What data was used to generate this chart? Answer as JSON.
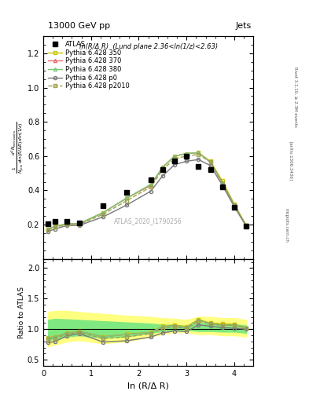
{
  "title_top": "13000 GeV pp",
  "title_right": "Jets",
  "plot_label": "ln(R/Δ R)  (Lund plane 2.36<ln(1/z)<2.63)",
  "watermark": "ATLAS_2020_I1790256",
  "rivet_label": "Rivet 3.1.10, ≥ 2.3M events",
  "arxiv_label": "[arXiv:1306.3436]",
  "mcplots_label": "mcplots.cern.ch",
  "ylabel_main": "$\\frac{1}{N_{\\mathrm{jets}}}\\frac{d^{2}N_{\\mathrm{emissions}}}{d\\ln(R/\\Delta R)\\,d\\ln(1/z)}$",
  "ylabel_ratio": "Ratio to ATLAS",
  "xlabel": "ln (R/Δ R)",
  "xlim": [
    0,
    4.4
  ],
  "ylim_main": [
    0.0,
    1.3
  ],
  "ylim_ratio": [
    0.4,
    2.15
  ],
  "yticks_main": [
    0.2,
    0.4,
    0.6,
    0.8,
    1.0,
    1.2
  ],
  "yticks_ratio": [
    0.5,
    1.0,
    1.5,
    2.0
  ],
  "x_data": [
    0.1,
    0.25,
    0.5,
    0.75,
    1.25,
    1.75,
    2.25,
    2.5,
    2.75,
    3.0,
    3.25,
    3.5,
    3.75,
    4.0,
    4.25
  ],
  "atlas_y": [
    0.205,
    0.22,
    0.22,
    0.21,
    0.31,
    0.39,
    0.46,
    0.52,
    0.57,
    0.6,
    0.54,
    0.52,
    0.42,
    0.3,
    0.19
  ],
  "p350_y": [
    0.175,
    0.19,
    0.205,
    0.205,
    0.27,
    0.355,
    0.43,
    0.535,
    0.6,
    0.615,
    0.62,
    0.57,
    0.455,
    0.32,
    0.195
  ],
  "p370_y": [
    0.175,
    0.19,
    0.205,
    0.205,
    0.27,
    0.355,
    0.43,
    0.535,
    0.6,
    0.615,
    0.62,
    0.565,
    0.445,
    0.315,
    0.195
  ],
  "p380_y": [
    0.175,
    0.19,
    0.205,
    0.205,
    0.27,
    0.355,
    0.435,
    0.535,
    0.6,
    0.615,
    0.62,
    0.565,
    0.445,
    0.315,
    0.195
  ],
  "pp0_y": [
    0.16,
    0.175,
    0.195,
    0.195,
    0.245,
    0.315,
    0.395,
    0.485,
    0.55,
    0.57,
    0.58,
    0.545,
    0.43,
    0.305,
    0.19
  ],
  "pp2010_y": [
    0.17,
    0.185,
    0.2,
    0.2,
    0.26,
    0.34,
    0.42,
    0.52,
    0.585,
    0.6,
    0.61,
    0.565,
    0.445,
    0.315,
    0.195
  ],
  "ratio_p350": [
    0.865,
    0.88,
    0.94,
    0.97,
    0.88,
    0.92,
    0.95,
    1.05,
    1.07,
    1.04,
    1.16,
    1.1,
    1.09,
    1.08,
    1.02
  ],
  "ratio_p370": [
    0.86,
    0.875,
    0.935,
    0.965,
    0.875,
    0.915,
    0.945,
    1.04,
    1.06,
    1.03,
    1.15,
    1.09,
    1.065,
    1.065,
    1.02
  ],
  "ratio_p380": [
    0.86,
    0.875,
    0.935,
    0.965,
    0.875,
    0.915,
    0.945,
    1.04,
    1.06,
    1.03,
    1.15,
    1.09,
    1.065,
    1.065,
    1.02
  ],
  "ratio_pp0": [
    0.78,
    0.8,
    0.89,
    0.93,
    0.79,
    0.81,
    0.87,
    0.94,
    0.97,
    0.96,
    1.07,
    1.05,
    1.025,
    1.015,
    1.0
  ],
  "ratio_pp2010": [
    0.835,
    0.855,
    0.915,
    0.95,
    0.845,
    0.875,
    0.925,
    1.01,
    1.04,
    1.01,
    1.13,
    1.09,
    1.065,
    1.065,
    1.02
  ],
  "band_yellow_lo": [
    0.72,
    0.75,
    0.8,
    0.82,
    0.77,
    0.8,
    0.88,
    0.92,
    0.95,
    0.95,
    0.92,
    0.92,
    0.9,
    0.9,
    0.88
  ],
  "band_yellow_hi": [
    1.28,
    1.3,
    1.3,
    1.28,
    1.25,
    1.22,
    1.2,
    1.18,
    1.17,
    1.15,
    1.2,
    1.2,
    1.18,
    1.18,
    1.15
  ],
  "band_green_lo": [
    0.82,
    0.84,
    0.88,
    0.9,
    0.86,
    0.88,
    0.94,
    0.97,
    0.99,
    0.99,
    0.97,
    0.97,
    0.96,
    0.96,
    0.94
  ],
  "band_green_hi": [
    1.15,
    1.17,
    1.16,
    1.15,
    1.13,
    1.11,
    1.09,
    1.07,
    1.07,
    1.05,
    1.1,
    1.1,
    1.08,
    1.08,
    1.06
  ],
  "color_350": "#c8c800",
  "color_370": "#e87070",
  "color_380": "#78c878",
  "color_p0": "#787878",
  "color_p2010": "#a0a050",
  "color_atlas": "#000000",
  "color_yellow": "#ffff80",
  "color_green": "#80e880"
}
